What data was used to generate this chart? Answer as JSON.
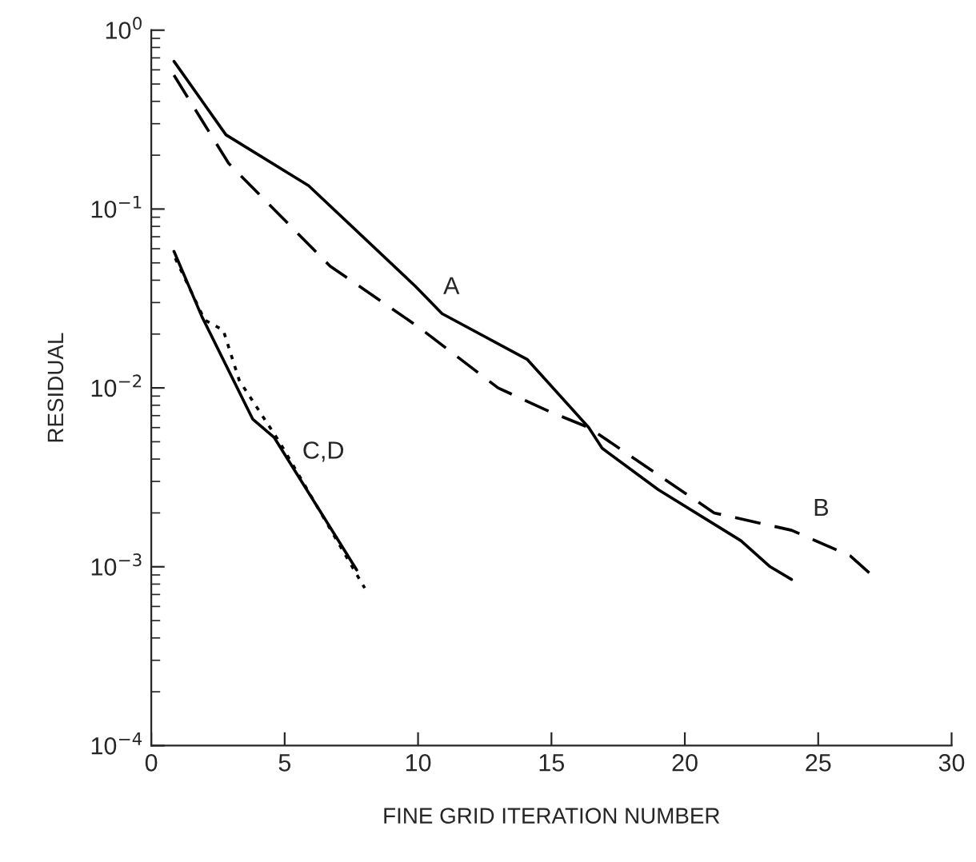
{
  "chart_data": {
    "type": "line",
    "xlabel": "FINE GRID ITERATION NUMBER",
    "ylabel": "RESIDUAL",
    "log": "y",
    "grid": false,
    "marker": "none",
    "xlim": [
      0,
      30
    ],
    "xticks": [
      0,
      5,
      10,
      15,
      20,
      25,
      30
    ],
    "ylim": [
      0.0001,
      1
    ],
    "yticks": [
      {
        "value": 0.0001,
        "label": "10$^{−4}$"
      },
      {
        "value": 0.001,
        "label": "10$^{−3}$"
      },
      {
        "value": 0.01,
        "label": "10$^{−2}$"
      },
      {
        "value": 0.1,
        "label": "10$^{−1}$"
      },
      {
        "value": 1,
        "label": "10$^{0}$"
      }
    ],
    "series": [
      {
        "color": "#000000",
        "line_style": "solid",
        "x": [
          0.85,
          2.8,
          5.9,
          9.9,
          10.9,
          14.1,
          16.4,
          16.9,
          19.0,
          22.1,
          23.2,
          24.0
        ],
        "values": [
          0.67,
          0.26,
          0.135,
          0.037,
          0.026,
          0.0144,
          0.006,
          0.0046,
          0.0027,
          0.0014,
          0.001,
          0.00085
        ]
      },
      {
        "color": "#000000",
        "line_style": "dashed",
        "x": [
          0.85,
          2.9,
          6.7,
          10.0,
          13.0,
          14.9,
          16.4,
          21.1,
          24.0,
          26.2,
          27.0
        ],
        "values": [
          0.56,
          0.18,
          0.048,
          0.022,
          0.01,
          0.0074,
          0.006,
          0.002,
          0.0016,
          0.00115,
          0.0009
        ]
      },
      {
        "color": "#000000",
        "line_style": "solid",
        "x": [
          0.85,
          1.9,
          3.8,
          4.6,
          7.7
        ],
        "values": [
          0.058,
          0.025,
          0.0067,
          0.0053,
          0.00096
        ]
      },
      {
        "color": "#000000",
        "line_style": "dotted",
        "x": [
          0.9,
          2.0,
          2.7,
          3.3,
          4.8,
          8.0
        ],
        "values": [
          0.053,
          0.024,
          0.021,
          0.011,
          0.005,
          0.00076
        ]
      }
    ],
    "annotations": [
      "A",
      "B",
      "C,D"
    ]
  }
}
